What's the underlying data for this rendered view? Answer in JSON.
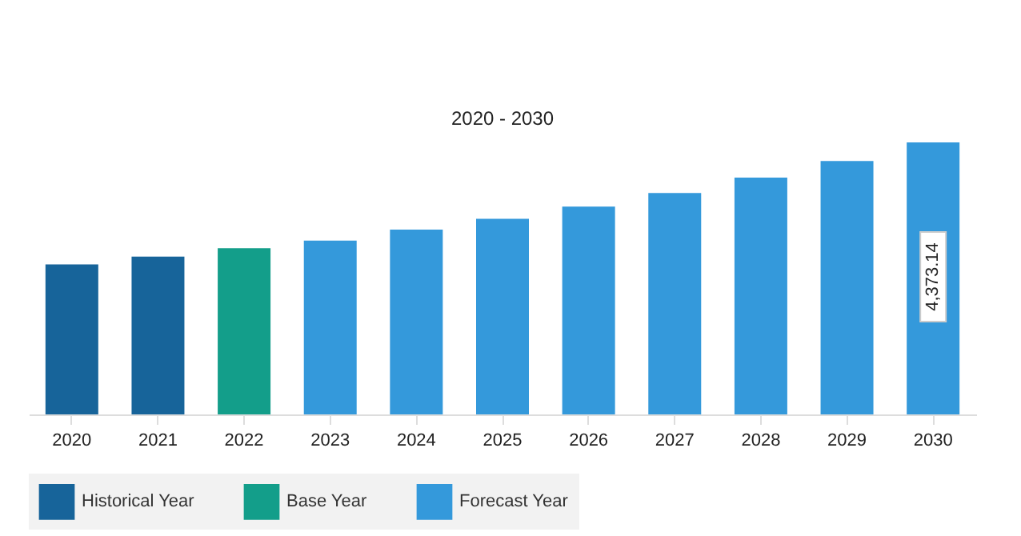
{
  "chart_data": {
    "type": "bar",
    "title": "2020 - 2030",
    "categories": [
      "2020",
      "2021",
      "2022",
      "2023",
      "2024",
      "2025",
      "2026",
      "2027",
      "2028",
      "2029",
      "2030"
    ],
    "series": [
      {
        "name": "Historical Year",
        "color": "#17649a",
        "values": [
          2413,
          2537,
          null,
          null,
          null,
          null,
          null,
          null,
          null,
          null,
          null
        ]
      },
      {
        "name": "Base Year",
        "color": "#139e8a",
        "values": [
          null,
          null,
          2671,
          null,
          null,
          null,
          null,
          null,
          null,
          null,
          null
        ]
      },
      {
        "name": "Forecast Year",
        "color": "#3499db",
        "values": [
          null,
          null,
          null,
          2795,
          2970,
          3146,
          3342,
          3558,
          3806,
          4074,
          4373.14
        ],
        "value_labels": [
          null,
          null,
          null,
          null,
          null,
          null,
          null,
          null,
          null,
          null,
          "4,373.14"
        ]
      }
    ],
    "tick_labels": "x",
    "grid": false,
    "legend": "bottom"
  }
}
